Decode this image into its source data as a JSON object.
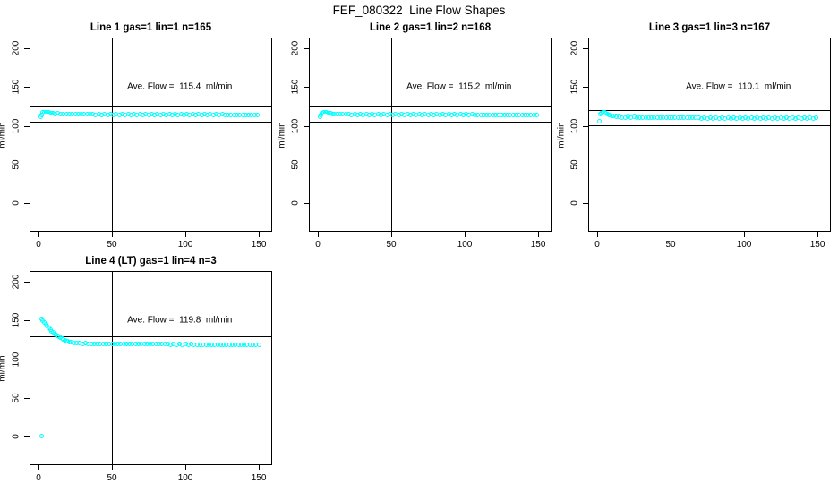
{
  "page_title": "FEF_080322  Line Flow Shapes",
  "colors": {
    "point": "#00ffff",
    "line": "#000000",
    "background": "#ffffff"
  },
  "axes": {
    "x_ticks": [
      0,
      50,
      100,
      150
    ],
    "y_ticks": [
      0,
      50,
      100,
      150,
      200
    ],
    "y_label": "ml/min",
    "x_label": "",
    "x_range": [
      -5.5,
      158.5
    ],
    "y_range": [
      -36,
      213
    ],
    "vline_x": 50,
    "grid": false
  },
  "chart_data": [
    {
      "type": "scatter",
      "title": "Line 1 gas=1 lin=1 n=165",
      "gas": 1,
      "lin": 1,
      "n": 165,
      "ave_flow": 115.4,
      "ave_flow_label": "Ave. Flow =  115.4  ml/min",
      "limit_upper": 125.4,
      "limit_lower": 105.4,
      "points": [
        [
          1.5,
          111.8
        ],
        [
          2,
          113.8
        ],
        [
          3,
          116.9
        ],
        [
          4,
          117.7
        ],
        [
          5,
          118.0
        ],
        [
          6,
          117.4
        ],
        [
          7,
          116.9
        ],
        [
          8,
          116.4
        ],
        [
          9,
          116.1
        ],
        [
          10,
          115.8
        ],
        [
          11,
          115.5
        ],
        [
          13,
          115.9
        ],
        [
          15,
          114.9
        ],
        [
          17,
          115.7
        ],
        [
          19,
          114.7
        ],
        [
          21,
          115.5
        ],
        [
          23,
          114.7
        ],
        [
          25,
          115.4
        ],
        [
          27,
          114.6
        ],
        [
          29,
          115.4
        ],
        [
          31,
          114.6
        ],
        [
          33,
          115.3
        ],
        [
          35,
          114.6
        ],
        [
          37,
          115.3
        ],
        [
          39,
          114.5
        ],
        [
          41,
          115.3
        ],
        [
          43,
          114.5
        ],
        [
          45,
          115.2
        ],
        [
          47,
          114.5
        ],
        [
          49,
          115.2
        ],
        [
          51,
          114.4
        ],
        [
          53,
          115.2
        ],
        [
          55,
          114.4
        ],
        [
          57,
          115.1
        ],
        [
          59,
          114.4
        ],
        [
          61,
          115.1
        ],
        [
          63,
          114.3
        ],
        [
          65,
          115.1
        ],
        [
          67,
          114.3
        ],
        [
          69,
          115.0
        ],
        [
          71,
          114.3
        ],
        [
          73,
          115.0
        ],
        [
          75,
          114.2
        ],
        [
          77,
          115.0
        ],
        [
          79,
          114.2
        ],
        [
          81,
          114.9
        ],
        [
          83,
          114.2
        ],
        [
          85,
          114.9
        ],
        [
          87,
          114.1
        ],
        [
          89,
          114.9
        ],
        [
          91,
          114.1
        ],
        [
          93,
          114.8
        ],
        [
          95,
          114.1
        ],
        [
          97,
          114.8
        ],
        [
          99,
          114.0
        ],
        [
          101,
          114.8
        ],
        [
          103,
          114.0
        ],
        [
          105,
          114.7
        ],
        [
          107,
          114.0
        ],
        [
          109,
          114.7
        ],
        [
          111,
          113.9
        ],
        [
          113,
          114.7
        ],
        [
          115,
          113.9
        ],
        [
          117,
          114.6
        ],
        [
          119,
          113.9
        ],
        [
          121,
          114.6
        ],
        [
          123,
          113.8
        ],
        [
          125,
          114.6
        ],
        [
          127,
          113.8
        ],
        [
          129,
          114.5
        ],
        [
          131,
          113.8
        ],
        [
          133,
          114.5
        ],
        [
          135,
          113.7
        ],
        [
          137,
          114.5
        ],
        [
          139,
          113.7
        ],
        [
          141,
          114.4
        ],
        [
          143,
          113.7
        ],
        [
          145,
          114.4
        ],
        [
          147,
          113.6
        ],
        [
          149,
          114.4
        ]
      ]
    },
    {
      "type": "scatter",
      "title": "Line 2 gas=1 lin=2 n=168",
      "gas": 1,
      "lin": 2,
      "n": 168,
      "ave_flow": 115.2,
      "ave_flow_label": "Ave. Flow =  115.2  ml/min",
      "limit_upper": 125.2,
      "limit_lower": 105.2,
      "points": [
        [
          1.5,
          112.0
        ],
        [
          2,
          114.2
        ],
        [
          3,
          116.4
        ],
        [
          4,
          117.2
        ],
        [
          5,
          117.6
        ],
        [
          6,
          117.1
        ],
        [
          7,
          116.6
        ],
        [
          8,
          116.2
        ],
        [
          9,
          115.8
        ],
        [
          10,
          115.5
        ],
        [
          11,
          115.3
        ],
        [
          13,
          115.7
        ],
        [
          15,
          114.7
        ],
        [
          17,
          115.5
        ],
        [
          19,
          114.6
        ],
        [
          21,
          115.4
        ],
        [
          23,
          114.5
        ],
        [
          25,
          115.3
        ],
        [
          27,
          114.5
        ],
        [
          29,
          115.3
        ],
        [
          31,
          114.4
        ],
        [
          33,
          115.2
        ],
        [
          35,
          114.4
        ],
        [
          37,
          115.2
        ],
        [
          39,
          114.4
        ],
        [
          41,
          115.1
        ],
        [
          43,
          114.3
        ],
        [
          45,
          115.1
        ],
        [
          47,
          114.3
        ],
        [
          49,
          115.0
        ],
        [
          51,
          114.3
        ],
        [
          53,
          115.0
        ],
        [
          55,
          114.2
        ],
        [
          57,
          115.0
        ],
        [
          59,
          114.2
        ],
        [
          61,
          114.9
        ],
        [
          63,
          114.2
        ],
        [
          65,
          114.9
        ],
        [
          67,
          114.1
        ],
        [
          69,
          114.9
        ],
        [
          71,
          114.1
        ],
        [
          73,
          114.8
        ],
        [
          75,
          114.1
        ],
        [
          77,
          114.8
        ],
        [
          79,
          114.0
        ],
        [
          81,
          114.8
        ],
        [
          83,
          114.0
        ],
        [
          85,
          114.7
        ],
        [
          87,
          114.0
        ],
        [
          89,
          114.7
        ],
        [
          91,
          113.9
        ],
        [
          93,
          114.7
        ],
        [
          95,
          113.9
        ],
        [
          97,
          114.6
        ],
        [
          99,
          113.9
        ],
        [
          101,
          114.6
        ],
        [
          103,
          113.8
        ],
        [
          105,
          114.6
        ],
        [
          107,
          113.8
        ],
        [
          109,
          114.5
        ],
        [
          111,
          113.8
        ],
        [
          113,
          114.5
        ],
        [
          115,
          113.7
        ],
        [
          117,
          114.5
        ],
        [
          119,
          113.7
        ],
        [
          121,
          114.4
        ],
        [
          123,
          113.7
        ],
        [
          125,
          114.4
        ],
        [
          127,
          113.6
        ],
        [
          129,
          114.4
        ],
        [
          131,
          113.6
        ],
        [
          133,
          114.3
        ],
        [
          135,
          113.6
        ],
        [
          137,
          114.3
        ],
        [
          139,
          113.5
        ],
        [
          141,
          114.3
        ],
        [
          143,
          113.5
        ],
        [
          145,
          114.2
        ],
        [
          147,
          113.5
        ],
        [
          149,
          114.2
        ]
      ]
    },
    {
      "type": "scatter",
      "title": "Line 3 gas=1 lin=3 n=167",
      "gas": 1,
      "lin": 3,
      "n": 167,
      "ave_flow": 110.1,
      "ave_flow_label": "Ave. Flow =  110.1  ml/min",
      "limit_upper": 120.1,
      "limit_lower": 100.1,
      "points": [
        [
          1.5,
          105.3
        ],
        [
          2,
          114.8
        ],
        [
          3,
          116.6
        ],
        [
          4,
          117.3
        ],
        [
          5,
          116.9
        ],
        [
          6,
          116.0
        ],
        [
          7,
          115.1
        ],
        [
          8,
          114.3
        ],
        [
          9,
          113.6
        ],
        [
          10,
          113.0
        ],
        [
          11,
          112.5
        ],
        [
          13,
          111.8
        ],
        [
          15,
          111.3
        ],
        [
          17,
          111.0
        ],
        [
          19,
          110.7
        ],
        [
          21,
          111.2
        ],
        [
          23,
          110.4
        ],
        [
          25,
          111.1
        ],
        [
          27,
          110.3
        ],
        [
          29,
          111.0
        ],
        [
          31,
          110.3
        ],
        [
          33,
          111.0
        ],
        [
          35,
          110.2
        ],
        [
          37,
          110.9
        ],
        [
          39,
          110.2
        ],
        [
          41,
          110.9
        ],
        [
          43,
          110.2
        ],
        [
          45,
          110.8
        ],
        [
          47,
          110.1
        ],
        [
          49,
          110.8
        ],
        [
          51,
          110.1
        ],
        [
          53,
          110.8
        ],
        [
          55,
          110.1
        ],
        [
          57,
          110.7
        ],
        [
          59,
          110.0
        ],
        [
          61,
          110.7
        ],
        [
          63,
          110.0
        ],
        [
          65,
          110.7
        ],
        [
          67,
          110.0
        ],
        [
          69,
          110.6
        ],
        [
          71,
          109.9
        ],
        [
          73,
          110.6
        ],
        [
          75,
          109.9
        ],
        [
          77,
          110.6
        ],
        [
          79,
          109.9
        ],
        [
          81,
          110.5
        ],
        [
          83,
          109.8
        ],
        [
          85,
          110.5
        ],
        [
          87,
          109.8
        ],
        [
          89,
          110.5
        ],
        [
          91,
          109.8
        ],
        [
          93,
          110.4
        ],
        [
          95,
          109.7
        ],
        [
          97,
          110.4
        ],
        [
          99,
          109.7
        ],
        [
          101,
          110.4
        ],
        [
          103,
          109.7
        ],
        [
          105,
          110.3
        ],
        [
          107,
          109.6
        ],
        [
          109,
          110.3
        ],
        [
          111,
          109.6
        ],
        [
          113,
          110.3
        ],
        [
          115,
          109.6
        ],
        [
          117,
          110.2
        ],
        [
          119,
          109.5
        ],
        [
          121,
          110.2
        ],
        [
          123,
          109.5
        ],
        [
          125,
          110.2
        ],
        [
          127,
          109.5
        ],
        [
          129,
          110.1
        ],
        [
          131,
          109.4
        ],
        [
          133,
          110.1
        ],
        [
          135,
          109.4
        ],
        [
          137,
          110.1
        ],
        [
          139,
          109.4
        ],
        [
          141,
          110.0
        ],
        [
          143,
          109.3
        ],
        [
          145,
          110.0
        ],
        [
          147,
          109.3
        ],
        [
          149,
          110.0
        ]
      ]
    },
    {
      "type": "scatter",
      "title": "Line 4 (LT) gas=1 lin=4 n=3",
      "gas": 1,
      "lin": 4,
      "n": 3,
      "ave_flow": 119.8,
      "ave_flow_label": "Ave. Flow =  119.8  ml/min",
      "limit_upper": 129.8,
      "limit_lower": 109.8,
      "points": [
        [
          2,
          0.5
        ],
        [
          2,
          152.2
        ],
        [
          3,
          149.6
        ],
        [
          4,
          147.1
        ],
        [
          5,
          144.7
        ],
        [
          6,
          142.4
        ],
        [
          7,
          140.2
        ],
        [
          8,
          138.2
        ],
        [
          9,
          136.3
        ],
        [
          10,
          134.6
        ],
        [
          11,
          133.0
        ],
        [
          12,
          131.5
        ],
        [
          13,
          130.1
        ],
        [
          14,
          128.8
        ],
        [
          15,
          127.5
        ],
        [
          16,
          126.4
        ],
        [
          17,
          125.3
        ],
        [
          18,
          124.4
        ],
        [
          19,
          123.5
        ],
        [
          20,
          122.7
        ],
        [
          21,
          122.0
        ],
        [
          22,
          121.6
        ],
        [
          24,
          121.0
        ],
        [
          26,
          120.7
        ],
        [
          28,
          120.8
        ],
        [
          30,
          120.3
        ],
        [
          32,
          120.5
        ],
        [
          34,
          120.1
        ],
        [
          36,
          120.3
        ],
        [
          38,
          120.0
        ],
        [
          40,
          120.2
        ],
        [
          42,
          119.9
        ],
        [
          44,
          120.1
        ],
        [
          46,
          119.8
        ],
        [
          48,
          120.0
        ],
        [
          50,
          119.7
        ],
        [
          52,
          119.9
        ],
        [
          54,
          119.6
        ],
        [
          56,
          119.8
        ],
        [
          58,
          119.5
        ],
        [
          60,
          119.7
        ],
        [
          62,
          119.5
        ],
        [
          64,
          119.7
        ],
        [
          66,
          119.4
        ],
        [
          68,
          119.6
        ],
        [
          70,
          119.4
        ],
        [
          72,
          119.6
        ],
        [
          74,
          119.3
        ],
        [
          76,
          119.5
        ],
        [
          78,
          119.3
        ],
        [
          80,
          119.5
        ],
        [
          82,
          119.2
        ],
        [
          84,
          119.4
        ],
        [
          86,
          119.2
        ],
        [
          88,
          119.4
        ],
        [
          90,
          119.1
        ],
        [
          92,
          119.3
        ],
        [
          94,
          119.1
        ],
        [
          96,
          119.3
        ],
        [
          98,
          119.0
        ],
        [
          100,
          119.2
        ],
        [
          102,
          119.0
        ],
        [
          104,
          119.2
        ],
        [
          106,
          118.9
        ],
        [
          108,
          119.1
        ],
        [
          110,
          118.9
        ],
        [
          112,
          119.1
        ],
        [
          114,
          118.8
        ],
        [
          116,
          119.0
        ],
        [
          118,
          118.8
        ],
        [
          120,
          119.0
        ],
        [
          122,
          118.7
        ],
        [
          124,
          118.9
        ],
        [
          126,
          118.7
        ],
        [
          128,
          118.9
        ],
        [
          130,
          118.6
        ],
        [
          132,
          118.8
        ],
        [
          134,
          118.6
        ],
        [
          136,
          118.8
        ],
        [
          138,
          118.5
        ],
        [
          140,
          118.7
        ],
        [
          142,
          118.5
        ],
        [
          144,
          118.7
        ],
        [
          146,
          118.4
        ],
        [
          148,
          118.6
        ],
        [
          150,
          118.5
        ]
      ]
    }
  ]
}
